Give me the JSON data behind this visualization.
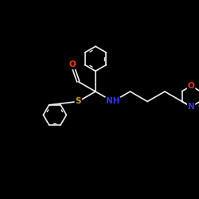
{
  "background_color": "#000000",
  "bond_color": "#f0f0f0",
  "atom_colors": {
    "S": "#daa520",
    "O": "#ff3300",
    "N": "#3333ff",
    "C": "#f0f0f0"
  },
  "bond_width": 1.2,
  "font_size": 7.5,
  "fig_size": [
    2.5,
    2.5
  ],
  "dpi": 100,
  "xlim": [
    0,
    10
  ],
  "ylim": [
    0,
    10
  ]
}
